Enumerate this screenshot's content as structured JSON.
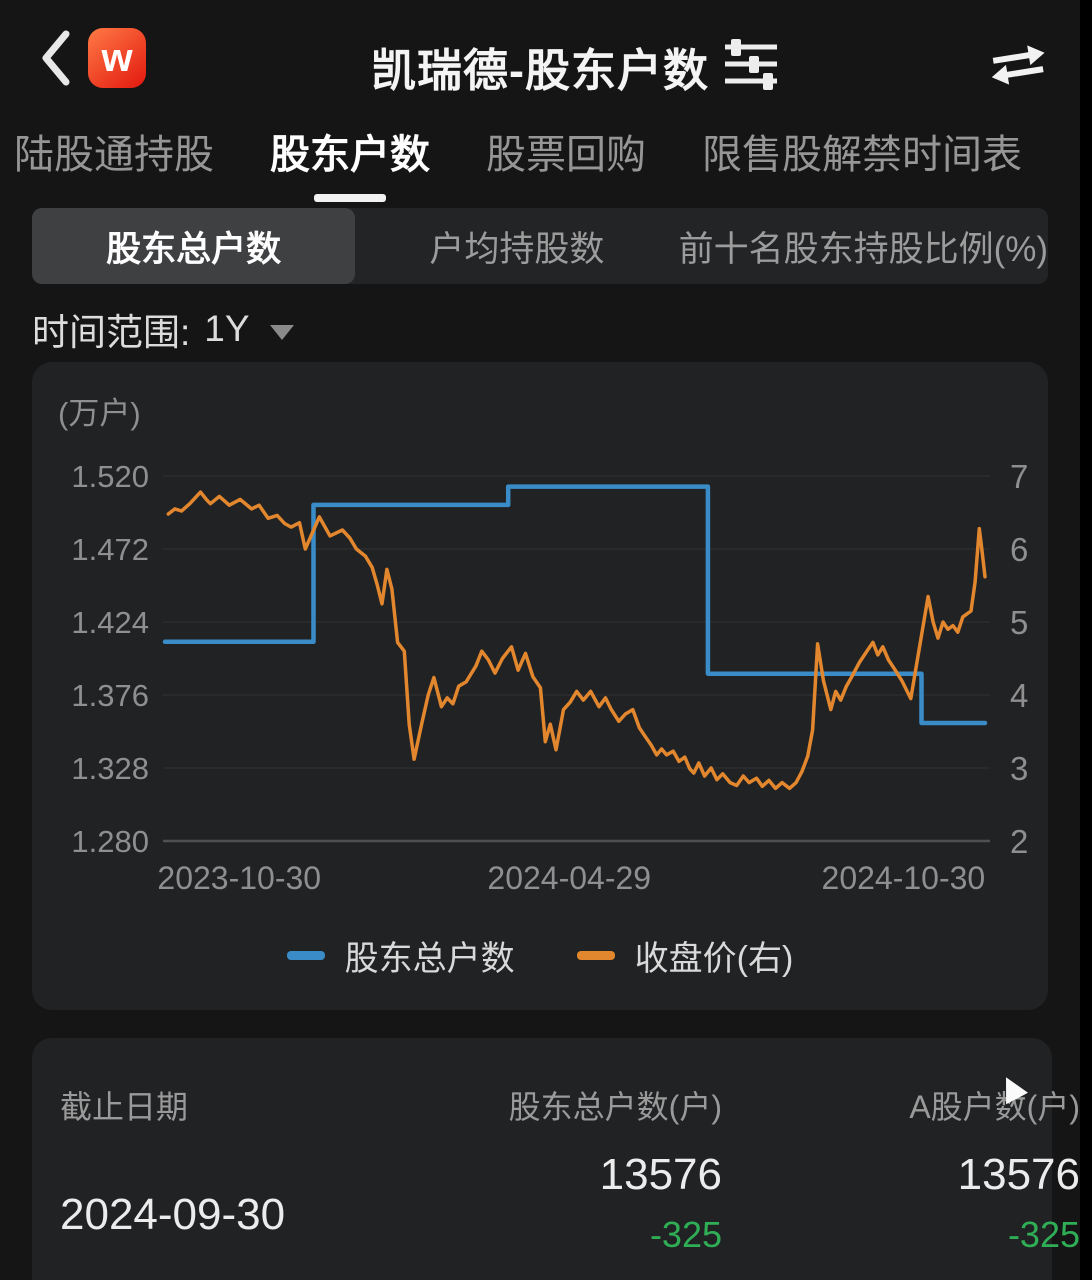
{
  "app": {
    "logo_text": "w",
    "title": "凯瑞德-股东户数"
  },
  "tabs": [
    {
      "label": "陆股通持股",
      "active": false
    },
    {
      "label": "股东户数",
      "active": true
    },
    {
      "label": "股票回购",
      "active": false
    },
    {
      "label": "限售股解禁时间表",
      "active": false
    }
  ],
  "sub_tabs": [
    {
      "label": "股东总户数",
      "selected": true
    },
    {
      "label": "户均持股数",
      "selected": false
    },
    {
      "label": "前十名股东持股比例(%)",
      "selected": false
    }
  ],
  "time_range": {
    "label": "时间范围:",
    "value": "1Y"
  },
  "chart_data": {
    "type": "line",
    "unit_label": "(万户)",
    "left_axis": {
      "ticks": [
        "1.520",
        "1.472",
        "1.424",
        "1.376",
        "1.328",
        "1.280"
      ],
      "min": 1.28,
      "max": 1.52
    },
    "right_axis": {
      "ticks": [
        "7",
        "6",
        "5",
        "4",
        "3",
        "2"
      ],
      "min": 2,
      "max": 7
    },
    "x_ticks": [
      {
        "label": "2023-10-30",
        "f": 0.09
      },
      {
        "label": "2024-04-29",
        "f": 0.49
      },
      {
        "label": "2024-10-30",
        "f": 0.895
      }
    ],
    "grid_color": "#2c2d2f",
    "axis_line_color": "#505050",
    "tick_color": "#8f8f8f",
    "series": [
      {
        "name": "股东总户数",
        "axis": "left",
        "color": "#3a8cc8",
        "style": "step",
        "points": [
          [
            0,
            1.411
          ],
          [
            0.18,
            1.411
          ],
          [
            0.18,
            1.501
          ],
          [
            0.416,
            1.501
          ],
          [
            0.416,
            1.513
          ],
          [
            0.658,
            1.513
          ],
          [
            0.658,
            1.39
          ],
          [
            0.917,
            1.39
          ],
          [
            0.917,
            1.3576
          ],
          [
            0.994,
            1.3576
          ]
        ]
      },
      {
        "name": "收盘价(右)",
        "axis": "right",
        "color": "#e2872e",
        "style": "line",
        "points": [
          [
            0.004,
            6.48
          ],
          [
            0.012,
            6.55
          ],
          [
            0.02,
            6.52
          ],
          [
            0.03,
            6.62
          ],
          [
            0.043,
            6.78
          ],
          [
            0.05,
            6.68
          ],
          [
            0.055,
            6.62
          ],
          [
            0.066,
            6.72
          ],
          [
            0.078,
            6.6
          ],
          [
            0.091,
            6.68
          ],
          [
            0.105,
            6.55
          ],
          [
            0.114,
            6.6
          ],
          [
            0.125,
            6.42
          ],
          [
            0.136,
            6.46
          ],
          [
            0.145,
            6.35
          ],
          [
            0.153,
            6.3
          ],
          [
            0.163,
            6.36
          ],
          [
            0.17,
            6.0
          ],
          [
            0.187,
            6.44
          ],
          [
            0.2,
            6.18
          ],
          [
            0.215,
            6.26
          ],
          [
            0.224,
            6.15
          ],
          [
            0.232,
            6.0
          ],
          [
            0.243,
            5.9
          ],
          [
            0.251,
            5.75
          ],
          [
            0.257,
            5.52
          ],
          [
            0.263,
            5.25
          ],
          [
            0.269,
            5.72
          ],
          [
            0.275,
            5.45
          ],
          [
            0.282,
            4.72
          ],
          [
            0.29,
            4.6
          ],
          [
            0.296,
            3.6
          ],
          [
            0.302,
            3.12
          ],
          [
            0.311,
            3.6
          ],
          [
            0.319,
            4.0
          ],
          [
            0.326,
            4.24
          ],
          [
            0.335,
            3.84
          ],
          [
            0.342,
            3.96
          ],
          [
            0.349,
            3.88
          ],
          [
            0.356,
            4.12
          ],
          [
            0.365,
            4.18
          ],
          [
            0.377,
            4.4
          ],
          [
            0.384,
            4.6
          ],
          [
            0.392,
            4.48
          ],
          [
            0.4,
            4.3
          ],
          [
            0.409,
            4.5
          ],
          [
            0.42,
            4.66
          ],
          [
            0.428,
            4.34
          ],
          [
            0.437,
            4.57
          ],
          [
            0.446,
            4.25
          ],
          [
            0.455,
            4.1
          ],
          [
            0.461,
            3.36
          ],
          [
            0.467,
            3.6
          ],
          [
            0.474,
            3.25
          ],
          [
            0.483,
            3.8
          ],
          [
            0.491,
            3.9
          ],
          [
            0.499,
            4.05
          ],
          [
            0.507,
            3.93
          ],
          [
            0.516,
            4.05
          ],
          [
            0.526,
            3.84
          ],
          [
            0.534,
            3.96
          ],
          [
            0.541,
            3.8
          ],
          [
            0.55,
            3.64
          ],
          [
            0.558,
            3.74
          ],
          [
            0.567,
            3.8
          ],
          [
            0.575,
            3.55
          ],
          [
            0.584,
            3.4
          ],
          [
            0.589,
            3.32
          ],
          [
            0.596,
            3.18
          ],
          [
            0.602,
            3.26
          ],
          [
            0.608,
            3.18
          ],
          [
            0.616,
            3.23
          ],
          [
            0.623,
            3.09
          ],
          [
            0.63,
            3.15
          ],
          [
            0.636,
            2.99
          ],
          [
            0.641,
            2.93
          ],
          [
            0.647,
            3.07
          ],
          [
            0.654,
            2.89
          ],
          [
            0.662,
            3.0
          ],
          [
            0.669,
            2.84
          ],
          [
            0.676,
            2.92
          ],
          [
            0.685,
            2.8
          ],
          [
            0.693,
            2.76
          ],
          [
            0.701,
            2.89
          ],
          [
            0.708,
            2.8
          ],
          [
            0.717,
            2.86
          ],
          [
            0.724,
            2.75
          ],
          [
            0.732,
            2.83
          ],
          [
            0.74,
            2.72
          ],
          [
            0.748,
            2.8
          ],
          [
            0.757,
            2.72
          ],
          [
            0.765,
            2.8
          ],
          [
            0.772,
            2.95
          ],
          [
            0.779,
            3.16
          ],
          [
            0.785,
            3.52
          ],
          [
            0.791,
            4.7
          ],
          [
            0.798,
            4.2
          ],
          [
            0.807,
            3.8
          ],
          [
            0.813,
            4.05
          ],
          [
            0.819,
            3.93
          ],
          [
            0.826,
            4.12
          ],
          [
            0.833,
            4.26
          ],
          [
            0.842,
            4.45
          ],
          [
            0.852,
            4.62
          ],
          [
            0.858,
            4.72
          ],
          [
            0.864,
            4.55
          ],
          [
            0.87,
            4.66
          ],
          [
            0.877,
            4.48
          ],
          [
            0.884,
            4.36
          ],
          [
            0.893,
            4.2
          ],
          [
            0.904,
            3.95
          ],
          [
            0.911,
            4.42
          ],
          [
            0.925,
            5.35
          ],
          [
            0.931,
            5.0
          ],
          [
            0.937,
            4.78
          ],
          [
            0.943,
            5.0
          ],
          [
            0.949,
            4.9
          ],
          [
            0.955,
            4.95
          ],
          [
            0.961,
            4.86
          ],
          [
            0.967,
            5.07
          ],
          [
            0.977,
            5.15
          ],
          [
            0.982,
            5.55
          ],
          [
            0.987,
            6.28
          ],
          [
            0.99,
            6.0
          ],
          [
            0.994,
            5.62
          ]
        ]
      }
    ]
  },
  "table": {
    "headers": [
      "截止日期",
      "股东总户数(户)",
      "A股户数(户)"
    ],
    "row": {
      "date": "2024-09-30",
      "total": "13576",
      "total_change": "-325",
      "a_share": "13576",
      "a_share_change": "-325"
    }
  },
  "colors": {
    "accent_blue": "#3a8cc8",
    "accent_orange": "#e2872e",
    "negative_green": "#2fae56",
    "logo_orange": "#ff7a45",
    "logo_red": "#e2180f",
    "card_bg": "#212224",
    "page_bg": "#151515"
  }
}
